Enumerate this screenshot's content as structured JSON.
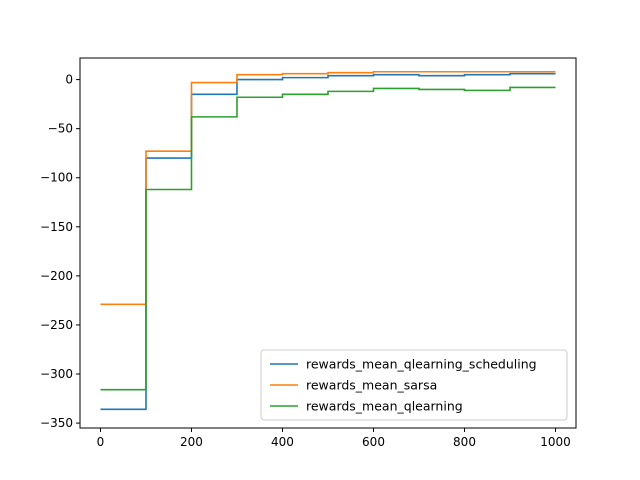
{
  "chart_data": {
    "type": "line",
    "title": "",
    "xlabel": "",
    "ylabel": "",
    "xlim": [
      -45,
      1045
    ],
    "ylim": [
      -355,
      22
    ],
    "x_ticks": [
      0,
      200,
      400,
      600,
      800,
      1000
    ],
    "y_ticks": [
      0,
      -50,
      -100,
      -150,
      -200,
      -250,
      -300,
      -350
    ],
    "x_tick_labels": [
      "0",
      "200",
      "400",
      "600",
      "800",
      "1000"
    ],
    "y_tick_labels": [
      "0",
      "−50",
      "−100",
      "−150",
      "−200",
      "−250",
      "−300",
      "−350"
    ],
    "step": "post",
    "grid": false,
    "legend_position": "lower right",
    "x": [
      0,
      100,
      200,
      300,
      400,
      500,
      600,
      700,
      800,
      900,
      1000
    ],
    "series": [
      {
        "name": "rewards_mean_qlearning_scheduling",
        "color": "#1f77b4",
        "values": [
          -336,
          -80,
          -15,
          0,
          2,
          4,
          5,
          4,
          5,
          6,
          6
        ]
      },
      {
        "name": "rewards_mean_sarsa",
        "color": "#ff7f0e",
        "values": [
          -229,
          -73,
          -3,
          5,
          6,
          7,
          8,
          8,
          8,
          8,
          8
        ]
      },
      {
        "name": "rewards_mean_qlearning",
        "color": "#2ca02c",
        "values": [
          -316,
          -112,
          -38,
          -18,
          -15,
          -12,
          -9,
          -10,
          -11,
          -8,
          -8
        ]
      }
    ]
  }
}
